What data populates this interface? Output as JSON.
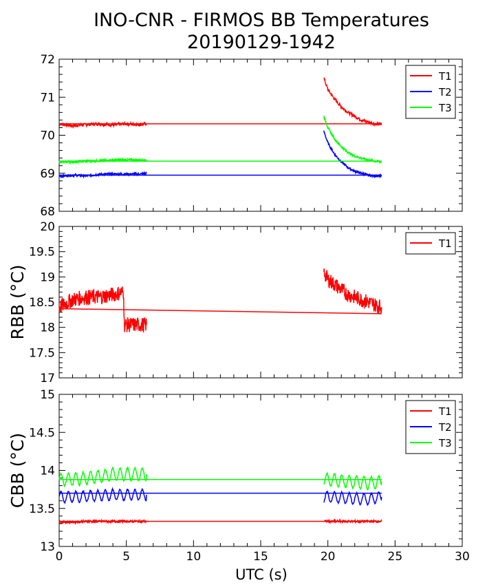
{
  "title_line1": "INO-CNR - FIRMOS BB Temperatures",
  "title_line2": "20190129-1942",
  "xlabel": "UTC (s)",
  "xticks": [
    "0",
    "5",
    "10",
    "15",
    "20",
    "25",
    "30"
  ],
  "chart_data": [
    {
      "type": "line",
      "ylabel": "",
      "xlim": [
        0,
        30
      ],
      "ylim": [
        68,
        72
      ],
      "yticks": [
        "68",
        "69",
        "70",
        "71",
        "72"
      ],
      "legend_position": "top-right",
      "series": [
        {
          "name": "T1",
          "color": "#ff0000",
          "x": [
            0,
            1,
            2,
            3,
            4,
            5,
            6,
            6.5,
            19.7,
            20,
            20.5,
            21,
            21.5,
            22,
            22.5,
            23,
            23.5,
            24
          ],
          "y": [
            70.3,
            70.25,
            70.28,
            70.3,
            70.27,
            70.3,
            70.28,
            70.3,
            71.5,
            71.2,
            70.95,
            70.75,
            70.6,
            70.5,
            70.4,
            70.35,
            70.3,
            70.28
          ],
          "baseline": 70.3,
          "noise": 0.04
        },
        {
          "name": "T2",
          "color": "#0000ff",
          "x": [
            0,
            1,
            2,
            3,
            4,
            5,
            6,
            6.5,
            19.7,
            20,
            20.5,
            21,
            21.5,
            22,
            22.5,
            23,
            23.5,
            24
          ],
          "y": [
            68.92,
            68.95,
            68.93,
            68.97,
            68.98,
            68.98,
            68.98,
            69.0,
            70.1,
            69.8,
            69.5,
            69.3,
            69.15,
            69.05,
            69.0,
            68.95,
            68.93,
            68.92
          ],
          "baseline": 68.95,
          "noise": 0.03
        },
        {
          "name": "T3",
          "color": "#00ff00",
          "x": [
            0,
            1,
            2,
            3,
            4,
            5,
            6,
            6.5,
            19.7,
            20,
            20.5,
            21,
            21.5,
            22,
            22.5,
            23,
            23.5,
            24
          ],
          "y": [
            69.3,
            69.3,
            69.32,
            69.33,
            69.35,
            69.35,
            69.35,
            69.35,
            70.5,
            70.2,
            69.9,
            69.7,
            69.55,
            69.45,
            69.4,
            69.35,
            69.32,
            69.3
          ],
          "baseline": 69.32,
          "noise": 0.03
        }
      ]
    },
    {
      "type": "line",
      "ylabel": "RBB (°C)",
      "xlim": [
        0,
        30
      ],
      "ylim": [
        17,
        20
      ],
      "yticks": [
        "17",
        "17.5",
        "18",
        "18.5",
        "19",
        "19.5",
        "20"
      ],
      "legend_position": "top-right",
      "series": [
        {
          "name": "T1",
          "color": "#ff0000",
          "x": [
            0,
            1,
            2,
            3,
            4,
            4.8,
            4.85,
            6.5,
            19.7,
            20,
            20.5,
            21,
            21.5,
            22,
            22.5,
            23,
            23.5,
            24
          ],
          "y": [
            18.4,
            18.55,
            18.6,
            18.6,
            18.65,
            18.7,
            18.05,
            18.05,
            19.1,
            18.95,
            18.85,
            18.75,
            18.65,
            18.6,
            18.55,
            18.5,
            18.45,
            18.4
          ],
          "baseline_start": 18.37,
          "baseline_end": 18.27,
          "noise": 0.15
        }
      ]
    },
    {
      "type": "line",
      "ylabel": "CBB (°C)",
      "xlim": [
        0,
        30
      ],
      "ylim": [
        13,
        15
      ],
      "yticks": [
        "13",
        "13.5",
        "14",
        "14.5",
        "15"
      ],
      "legend_position": "top-right",
      "series": [
        {
          "name": "T1",
          "color": "#ff0000",
          "x": [
            0,
            1,
            2,
            3,
            4,
            5,
            6,
            6.5,
            19.7,
            20,
            21,
            22,
            23,
            24
          ],
          "y": [
            13.32,
            13.32,
            13.33,
            13.33,
            13.33,
            13.33,
            13.33,
            13.33,
            13.33,
            13.33,
            13.33,
            13.33,
            13.33,
            13.33
          ],
          "baseline": 13.33,
          "noise": 0.015
        },
        {
          "name": "T2",
          "color": "#0000ff",
          "x": [
            0,
            1,
            2,
            3,
            4,
            5,
            6,
            6.5,
            19.7,
            20,
            21,
            22,
            23,
            24
          ],
          "y": [
            13.65,
            13.65,
            13.66,
            13.67,
            13.68,
            13.68,
            13.68,
            13.68,
            13.65,
            13.65,
            13.64,
            13.63,
            13.62,
            13.65
          ],
          "baseline": 13.7,
          "amplitude": 0.07
        },
        {
          "name": "T3",
          "color": "#00ff00",
          "x": [
            0,
            1,
            2,
            3,
            4,
            5,
            6,
            6.5,
            19.7,
            20,
            21,
            22,
            23,
            24
          ],
          "y": [
            13.88,
            13.88,
            13.9,
            13.92,
            13.95,
            13.95,
            13.95,
            13.95,
            13.88,
            13.88,
            13.86,
            13.85,
            13.83,
            13.85
          ],
          "baseline": 13.88,
          "amplitude": 0.08
        }
      ]
    }
  ]
}
